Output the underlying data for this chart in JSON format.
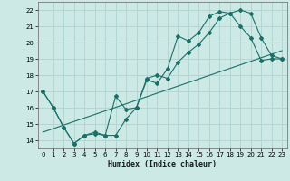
{
  "xlabel": "Humidex (Indice chaleur)",
  "background_color": "#cce9e6",
  "grid_color": "#aed4d0",
  "line_color": "#1a7068",
  "xlim": [
    -0.5,
    23.5
  ],
  "ylim": [
    13.5,
    22.5
  ],
  "xticks": [
    0,
    1,
    2,
    3,
    4,
    5,
    6,
    7,
    8,
    9,
    10,
    11,
    12,
    13,
    14,
    15,
    16,
    17,
    18,
    19,
    20,
    21,
    22,
    23
  ],
  "yticks": [
    14,
    15,
    16,
    17,
    18,
    19,
    20,
    21,
    22
  ],
  "line1_x": [
    0,
    1,
    2,
    3,
    4,
    5,
    6,
    7,
    8,
    9,
    10,
    11,
    12,
    13,
    14,
    15,
    16,
    17,
    18,
    19,
    20,
    21,
    22,
    23
  ],
  "line1_y": [
    17.0,
    16.0,
    14.8,
    13.8,
    14.3,
    14.4,
    14.3,
    16.7,
    15.9,
    16.0,
    17.7,
    17.5,
    18.4,
    20.4,
    20.1,
    20.6,
    21.6,
    21.9,
    21.8,
    21.0,
    20.3,
    18.9,
    19.0,
    19.0
  ],
  "line2_x": [
    0,
    1,
    2,
    3,
    4,
    5,
    6,
    7,
    8,
    9,
    10,
    11,
    12,
    13,
    14,
    15,
    16,
    17,
    18,
    19,
    20,
    21,
    22,
    23
  ],
  "line2_y": [
    17.0,
    16.0,
    14.8,
    13.8,
    14.3,
    14.5,
    14.3,
    14.3,
    15.3,
    16.0,
    17.8,
    18.0,
    17.8,
    18.8,
    19.4,
    19.9,
    20.6,
    21.5,
    21.8,
    22.0,
    21.8,
    20.3,
    19.2,
    19.0
  ],
  "line3_x": [
    0,
    23
  ],
  "line3_y": [
    14.5,
    19.5
  ]
}
